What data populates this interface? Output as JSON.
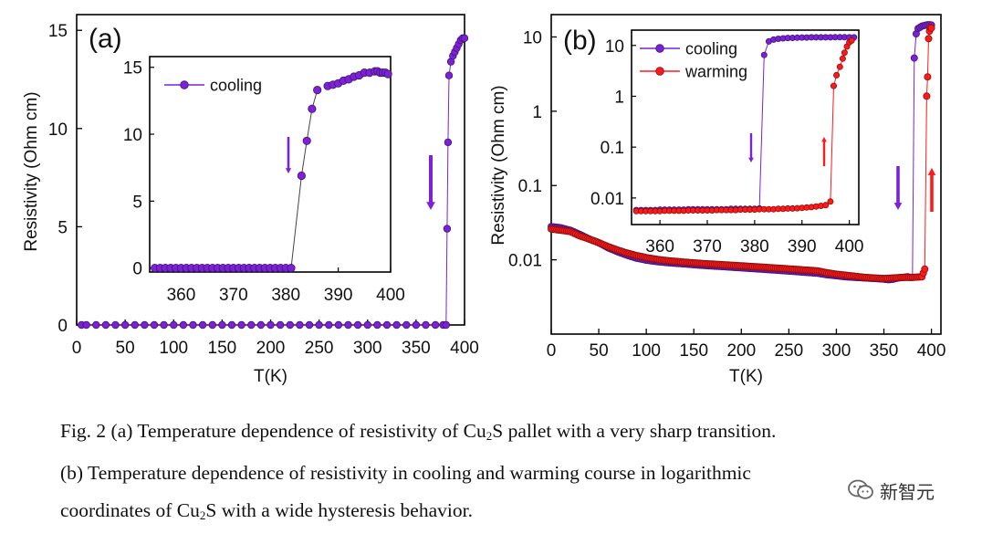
{
  "chart_data": [
    {
      "id": "a",
      "type": "scatter",
      "panel_label": "(a)",
      "xlabel": "T(K)",
      "ylabel": "Resistivity (Ohm cm)",
      "xlim": [
        0,
        400
      ],
      "ylim": [
        0,
        15
      ],
      "yscale": "linear",
      "xticks": [
        0,
        50,
        100,
        150,
        200,
        250,
        300,
        350,
        400
      ],
      "yticks": [
        0,
        5,
        10,
        15
      ],
      "series": [
        {
          "name": "cooling",
          "color": "#7b22d6",
          "x": [
            5,
            10,
            20,
            30,
            40,
            50,
            60,
            70,
            80,
            90,
            100,
            110,
            120,
            130,
            140,
            150,
            160,
            170,
            180,
            190,
            200,
            210,
            220,
            230,
            240,
            250,
            260,
            270,
            280,
            290,
            300,
            310,
            320,
            330,
            340,
            350,
            360,
            370,
            378,
            381,
            382,
            383,
            384,
            386,
            388,
            390,
            392,
            394,
            396,
            398,
            400
          ],
          "y": [
            0,
            0,
            0,
            0,
            0,
            0,
            0,
            0,
            0,
            0,
            0,
            0,
            0,
            0,
            0,
            0,
            0,
            0,
            0,
            0,
            0,
            0,
            0,
            0,
            0,
            0,
            0,
            0,
            0,
            0,
            0,
            0,
            0,
            0,
            0,
            0,
            0,
            0,
            0,
            0,
            4.9,
            9.3,
            12.7,
            13.4,
            13.7,
            13.9,
            14.1,
            14.3,
            14.5,
            14.6,
            14.6
          ]
        }
      ],
      "annotations": [
        {
          "type": "arrow",
          "direction": "down",
          "near_x": 366,
          "near_y": 7
        }
      ],
      "inset": {
        "xlim": [
          354,
          400
        ],
        "ylim": [
          0,
          15
        ],
        "xticks": [
          360,
          370,
          380,
          390,
          400
        ],
        "yticks": [
          0,
          5,
          10,
          15
        ],
        "legend": {
          "entries": [
            "cooling"
          ],
          "position": "top-left"
        },
        "series": [
          {
            "name": "cooling",
            "color": "#7b22d6",
            "x": [
              355,
              356,
              357,
              358,
              359,
              360,
              361,
              362,
              363,
              364,
              365,
              366,
              367,
              368,
              369,
              370,
              371,
              372,
              373,
              374,
              375,
              376,
              377,
              378,
              379,
              380,
              381,
              383,
              384,
              385,
              386,
              388,
              389,
              390,
              391,
              392,
              393,
              394,
              395,
              396,
              397,
              397.5,
              398,
              398.5,
              399,
              399.5
            ],
            "y": [
              0,
              0,
              0,
              0,
              0,
              0,
              0,
              0,
              0,
              0,
              0,
              0,
              0,
              0,
              0,
              0,
              0,
              0,
              0,
              0,
              0,
              0,
              0,
              0,
              0,
              0,
              0,
              6.9,
              9.5,
              11.9,
              13.3,
              13.6,
              13.7,
              13.8,
              14.0,
              14.1,
              14.3,
              14.4,
              14.6,
              14.6,
              14.7,
              14.7,
              14.6,
              14.6,
              14.6,
              14.5
            ],
            "line": [
              [
                381,
                0
              ],
              [
                383,
                6.9
              ],
              [
                384,
                9.5
              ],
              [
                385,
                11.9
              ],
              [
                386,
                13.3
              ]
            ]
          }
        ],
        "annotations": [
          {
            "type": "arrow",
            "direction": "down",
            "near_x": 379,
            "near_y": 7.5
          }
        ]
      }
    },
    {
      "id": "b",
      "type": "scatter",
      "panel_label": "(b)",
      "xlabel": "T(K)",
      "ylabel": "Resistivity (Ohm cm)",
      "xlim": [
        0,
        410
      ],
      "ylim": [
        0.001,
        20
      ],
      "yscale": "log",
      "xticks": [
        0,
        50,
        100,
        150,
        200,
        250,
        300,
        350,
        400
      ],
      "yticks": [
        0.01,
        0.1,
        1,
        10
      ],
      "ytick_labels": [
        "0.01",
        "0.1",
        "1",
        "10"
      ],
      "series": [
        {
          "name": "cooling",
          "color": "#7b22d6",
          "x": [
            0,
            10,
            20,
            30,
            40,
            50,
            60,
            70,
            80,
            90,
            100,
            110,
            120,
            140,
            160,
            180,
            200,
            220,
            240,
            260,
            280,
            290,
            300,
            310,
            320,
            330,
            340,
            350,
            355,
            360,
            365,
            370,
            375,
            378,
            380,
            382,
            384,
            386,
            388,
            390,
            392,
            394,
            396,
            398,
            400
          ],
          "y": [
            0.028,
            0.027,
            0.025,
            0.022,
            0.019,
            0.017,
            0.0145,
            0.0128,
            0.0115,
            0.0105,
            0.0099,
            0.0095,
            0.0092,
            0.0088,
            0.0084,
            0.0081,
            0.0078,
            0.0075,
            0.0072,
            0.0069,
            0.0066,
            0.0063,
            0.0061,
            0.0059,
            0.0058,
            0.0057,
            0.0056,
            0.0055,
            0.0054,
            0.0055,
            0.0057,
            0.0058,
            0.0059,
            0.0058,
            0.0058,
            5.2,
            11,
            13,
            13.5,
            14,
            14.2,
            14.4,
            14.6,
            14.6,
            14.5
          ]
        },
        {
          "name": "warming",
          "color": "#ff1a1a",
          "x": [
            0,
            10,
            20,
            30,
            40,
            50,
            60,
            70,
            80,
            90,
            100,
            110,
            120,
            140,
            160,
            180,
            200,
            220,
            240,
            260,
            280,
            290,
            300,
            310,
            320,
            330,
            340,
            350,
            360,
            370,
            380,
            390,
            393,
            395,
            396,
            397,
            398,
            399,
            400
          ],
          "y": [
            0.026,
            0.025,
            0.024,
            0.021,
            0.019,
            0.017,
            0.015,
            0.0135,
            0.0123,
            0.0114,
            0.0107,
            0.0102,
            0.0098,
            0.0093,
            0.0089,
            0.0086,
            0.0083,
            0.008,
            0.0077,
            0.0074,
            0.0071,
            0.0067,
            0.0064,
            0.0062,
            0.006,
            0.0058,
            0.0057,
            0.0056,
            0.0057,
            0.0058,
            0.0058,
            0.0059,
            0.0075,
            1.6,
            2.9,
            9.5,
            12,
            13.5,
            13.2
          ]
        }
      ],
      "annotations": [
        {
          "type": "arrow",
          "direction": "down",
          "color": "#7b22d6",
          "near_x": 372,
          "near_y": 0.2
        },
        {
          "type": "arrow",
          "direction": "up",
          "color": "#ff1a1a",
          "near_x": 407,
          "near_y": 0.2
        }
      ],
      "inset": {
        "xlim": [
          354,
          402
        ],
        "ylim": [
          0.003,
          20
        ],
        "yscale": "log",
        "xticks": [
          360,
          370,
          380,
          390,
          400
        ],
        "yticks": [
          0.01,
          0.1,
          1,
          10
        ],
        "ytick_labels": [
          "0.01",
          "0.1",
          "1",
          "10"
        ],
        "legend": {
          "entries": [
            "cooling",
            "warming"
          ],
          "position": "top-left"
        },
        "series": [
          {
            "name": "cooling",
            "color": "#7b22d6",
            "x": [
              355,
              356,
              357,
              358,
              359,
              360,
              361,
              362,
              363,
              364,
              365,
              366,
              367,
              368,
              369,
              370,
              371,
              372,
              373,
              374,
              375,
              376,
              377,
              378,
              379,
              380,
              381,
              382,
              383,
              384,
              385,
              386,
              387,
              388,
              389,
              390,
              391,
              392,
              393,
              394,
              395,
              396,
              397,
              398,
              399,
              400,
              401
            ],
            "y": [
              0.0058,
              0.0058,
              0.0058,
              0.0058,
              0.0058,
              0.0059,
              0.0059,
              0.0059,
              0.0059,
              0.0059,
              0.0059,
              0.006,
              0.006,
              0.006,
              0.006,
              0.006,
              0.006,
              0.006,
              0.006,
              0.006,
              0.0061,
              0.0061,
              0.0061,
              0.0061,
              0.0061,
              0.0061,
              0.0062,
              6.5,
              12,
              13,
              13.5,
              13.8,
              14,
              14.1,
              14.2,
              14.3,
              14.3,
              14.4,
              14.4,
              14.4,
              14.4,
              14.4,
              14.5,
              14.5,
              14.5,
              14.4,
              14.4
            ]
          },
          {
            "name": "warming",
            "color": "#ff1a1a",
            "x": [
              355,
              356,
              357,
              358,
              359,
              360,
              361,
              362,
              363,
              364,
              365,
              366,
              367,
              368,
              369,
              370,
              371,
              372,
              373,
              374,
              375,
              376,
              377,
              378,
              379,
              380,
              381,
              382,
              383,
              384,
              385,
              386,
              387,
              388,
              389,
              390,
              391,
              392,
              393,
              394,
              395,
              396,
              396.7,
              397.3,
              398,
              398.6,
              399,
              399.5,
              400,
              400.5
            ],
            "y": [
              0.0055,
              0.0055,
              0.0055,
              0.0055,
              0.0055,
              0.0055,
              0.0056,
              0.0056,
              0.0056,
              0.0056,
              0.0056,
              0.0057,
              0.0057,
              0.0057,
              0.0057,
              0.0057,
              0.0057,
              0.0058,
              0.0058,
              0.0058,
              0.0058,
              0.0058,
              0.0059,
              0.0059,
              0.0059,
              0.0059,
              0.006,
              0.006,
              0.006,
              0.006,
              0.0061,
              0.0061,
              0.0062,
              0.0062,
              0.0063,
              0.0064,
              0.0065,
              0.0066,
              0.0068,
              0.007,
              0.0072,
              0.0085,
              1.6,
              2.6,
              3.8,
              5.5,
              7.2,
              9.5,
              11.5,
              12.5
            ]
          }
        ],
        "annotations": [
          {
            "type": "arrow",
            "direction": "down",
            "color": "#7b22d6",
            "near_x": 380,
            "near_y": 0.15
          },
          {
            "type": "arrow",
            "direction": "up",
            "color": "#ff1a1a",
            "near_x": 397,
            "near_y": 0.15
          }
        ]
      }
    }
  ],
  "caption": {
    "line1": {
      "before": "Fig. 2 (a) Temperature dependence of resistivity of Cu",
      "sub": "2",
      "after": "S pallet with a very sharp transition."
    },
    "line2": {
      "text": "(b) Temperature dependence of resistivity in cooling and warming course in logarithmic"
    },
    "line3": {
      "before": "coordinates of Cu",
      "sub": "2",
      "after": "S with a wide hysteresis behavior."
    }
  },
  "watermark": {
    "text": "新智元",
    "icon": "wechat-icon"
  }
}
